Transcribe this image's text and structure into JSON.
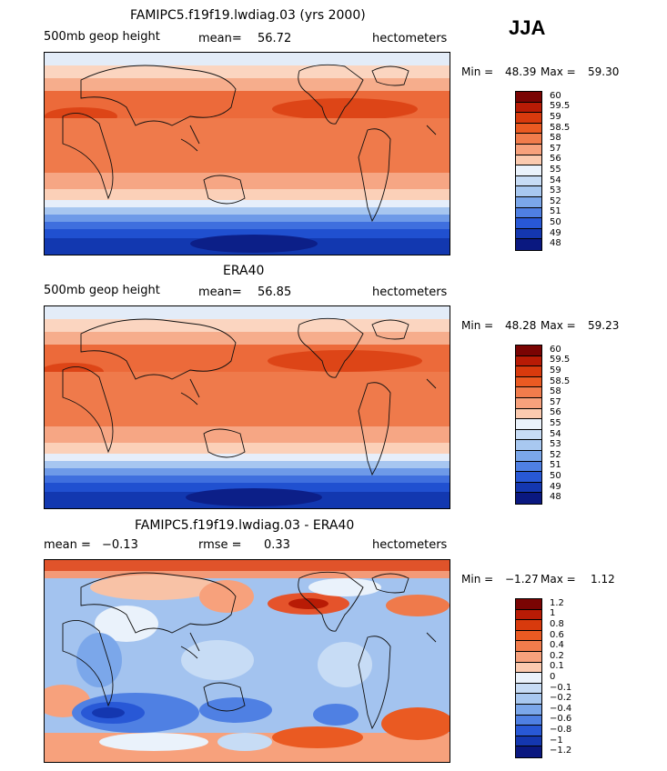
{
  "season": "JJA",
  "panels": [
    {
      "title": "FAMIPC5.f19f19.lwdiag.03 (yrs 2000)",
      "left_label": "500mb geop height",
      "stat_label": "mean=",
      "stat_value": "56.72",
      "units": "hectometers",
      "min_label": "Min =",
      "min_value": "48.39",
      "max_label": "Max =",
      "max_value": "59.30",
      "colorbar_labels": [
        "60",
        "59.5",
        "59",
        "58.5",
        "58",
        "57",
        "56",
        "55",
        "54",
        "53",
        "52",
        "51",
        "50",
        "49",
        "48"
      ]
    },
    {
      "title": "ERA40",
      "left_label": "500mb geop height",
      "stat_label": "mean=",
      "stat_value": "56.85",
      "units": "hectometers",
      "min_label": "Min =",
      "min_value": "48.28",
      "max_label": "Max =",
      "max_value": "59.23",
      "colorbar_labels": [
        "60",
        "59.5",
        "59",
        "58.5",
        "58",
        "57",
        "56",
        "55",
        "54",
        "53",
        "52",
        "51",
        "50",
        "49",
        "48"
      ]
    },
    {
      "title": "FAMIPC5.f19f19.lwdiag.03 - ERA40",
      "left_label": "mean =",
      "left_value": "−0.13",
      "stat_label": "rmse =",
      "stat_value": "0.33",
      "units": "hectometers",
      "min_label": "Min =",
      "min_value": "−1.27",
      "max_label": "Max =",
      "max_value": "1.12",
      "colorbar_labels": [
        "1.2",
        "1",
        "0.8",
        "0.6",
        "0.4",
        "0.2",
        "0.1",
        "0",
        "−0.1",
        "−0.2",
        "−0.4",
        "−0.6",
        "−0.8",
        "−1",
        "−1.2"
      ]
    }
  ],
  "colors": {
    "colorbar": [
      "#7a0403",
      "#b81b05",
      "#d83a0d",
      "#ea5a22",
      "#f17c4c",
      "#f7a17c",
      "#fbcaaf",
      "#eaf2fb",
      "#c7dcf5",
      "#a8c8f0",
      "#7ba7ea",
      "#4f80e3",
      "#2858d6",
      "#1437b0",
      "#0a1880"
    ]
  }
}
